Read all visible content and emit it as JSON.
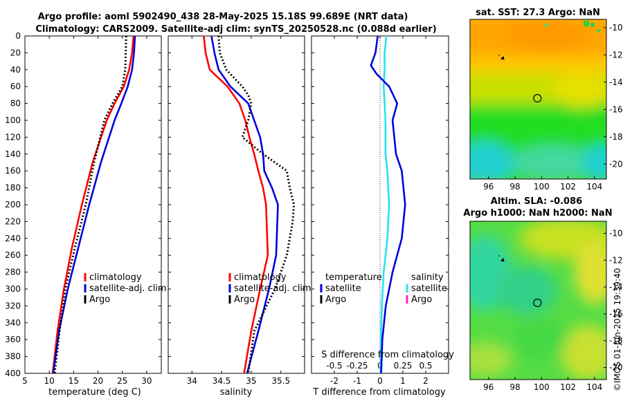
{
  "header": {
    "line1": "Argo profile: aoml 5902490_438 28-May-2025 15.18S 99.689E (NRT data)",
    "line2": "Climatology: CARS2009. Satellite-adj clim: synTS_20250528.nc (0.088d earlier)"
  },
  "colors": {
    "climatology": "#ff0000",
    "satellite": "#0000dd",
    "argo": "#000000",
    "sal_sat": "#22e5f0",
    "sal_argo": "#ff22cc"
  },
  "chart_data": [
    {
      "type": "line",
      "title": "",
      "xlabel": "temperature (deg C)",
      "ylabel": "",
      "xlim": [
        5,
        33
      ],
      "ylim": [
        400,
        0
      ],
      "xticks": [
        "5",
        "10",
        "15",
        "20",
        "25",
        "30"
      ],
      "yticks": [
        "0",
        "20",
        "40",
        "60",
        "80",
        "100",
        "120",
        "140",
        "160",
        "180",
        "200",
        "220",
        "240",
        "260",
        "280",
        "300",
        "320",
        "340",
        "360",
        "380",
        "400"
      ],
      "series": [
        {
          "name": "climatology",
          "style": "solid",
          "depth": [
            0,
            20,
            40,
            60,
            80,
            100,
            150,
            200,
            250,
            300,
            350,
            400
          ],
          "values": [
            27.3,
            27.0,
            26.4,
            25.3,
            23.4,
            21.8,
            18.9,
            16.7,
            14.7,
            13.0,
            11.7,
            10.7
          ]
        },
        {
          "name": "satellite-adj. clim",
          "style": "solid",
          "depth": [
            0,
            20,
            40,
            60,
            80,
            100,
            150,
            200,
            250,
            300,
            350,
            400
          ],
          "values": [
            27.6,
            27.4,
            27.0,
            26.1,
            24.8,
            23.4,
            20.6,
            18.2,
            16.0,
            13.8,
            12.0,
            10.8
          ]
        },
        {
          "name": "Argo",
          "style": "dotted",
          "depth": [
            0,
            20,
            40,
            60,
            80,
            100,
            150,
            200,
            250,
            300,
            350,
            400
          ],
          "values": [
            25.8,
            25.7,
            25.6,
            25.0,
            23.0,
            21.3,
            19.2,
            17.5,
            15.3,
            13.3,
            12.1,
            11.1
          ]
        }
      ],
      "legend": [
        "climatology",
        "satellite-adj. clim",
        "Argo"
      ]
    },
    {
      "type": "line",
      "xlabel": "salinity",
      "xlim": [
        33.6,
        35.9
      ],
      "ylim": [
        400,
        0
      ],
      "xticks": [
        "34",
        "34.5",
        "35",
        "35.5"
      ],
      "series": [
        {
          "name": "climatology",
          "style": "solid",
          "depth": [
            0,
            20,
            40,
            60,
            80,
            100,
            120,
            140,
            160,
            180,
            200,
            260,
            300,
            350,
            400
          ],
          "values": [
            34.2,
            34.23,
            34.3,
            34.6,
            34.8,
            34.9,
            34.97,
            35.05,
            35.12,
            35.2,
            35.25,
            35.28,
            35.15,
            35.0,
            34.88
          ]
        },
        {
          "name": "satellite-adj. clim",
          "style": "solid",
          "depth": [
            0,
            20,
            40,
            60,
            80,
            100,
            120,
            140,
            160,
            180,
            200,
            260,
            300,
            350,
            400
          ],
          "values": [
            34.33,
            34.38,
            34.45,
            34.65,
            34.95,
            35.05,
            35.15,
            35.2,
            35.22,
            35.35,
            35.45,
            35.42,
            35.3,
            35.12,
            34.93
          ]
        },
        {
          "name": "Argo",
          "style": "dotted",
          "depth": [
            0,
            20,
            40,
            60,
            70,
            80,
            100,
            120,
            140,
            160,
            180,
            200,
            220,
            260,
            300,
            350,
            400
          ],
          "values": [
            34.45,
            34.47,
            34.58,
            34.85,
            34.95,
            35.0,
            34.95,
            34.85,
            35.2,
            35.6,
            35.65,
            35.72,
            35.7,
            35.6,
            35.4,
            35.05,
            34.95
          ]
        }
      ],
      "legend": [
        "climatology",
        "satellite-adj. clim",
        "Argo"
      ]
    },
    {
      "type": "line",
      "xlabel": "T difference from climatology",
      "xlabel_top": "S difference from climatology",
      "xlim": [
        -3,
        3
      ],
      "ylim": [
        400,
        0
      ],
      "xticks": [
        "-2",
        "-1",
        "0",
        "1",
        "2"
      ],
      "xticks_top": [
        "-0.5",
        "-0.25",
        "0",
        "0.25",
        "0.5"
      ],
      "series": [
        {
          "name": "temperature satellite",
          "style": "solid",
          "depth": [
            0,
            20,
            35,
            45,
            60,
            80,
            100,
            140,
            160,
            200,
            240,
            280,
            320,
            360,
            400
          ],
          "values": [
            -0.1,
            -0.2,
            -0.4,
            -0.15,
            0.4,
            0.75,
            0.55,
            0.7,
            0.95,
            1.1,
            0.95,
            0.55,
            0.25,
            0.1,
            0.05
          ]
        },
        {
          "name": "salinity satellite",
          "depth": [
            0,
            20,
            40,
            60,
            80,
            100,
            140,
            160,
            200,
            240,
            280,
            320,
            360,
            400
          ],
          "values": [
            0.07,
            0.05,
            0.05,
            0.04,
            0.05,
            0.06,
            0.06,
            0.08,
            0.1,
            0.08,
            0.04,
            0.02,
            0.01,
            0.005
          ]
        }
      ],
      "legend_temperature": [
        "temperature",
        "satellite",
        "Argo"
      ],
      "legend_salinity": [
        "salinity",
        "satellite",
        "Argo"
      ]
    }
  ],
  "maps": {
    "sst_title": "sat. SST: 27.3 Argo: NaN",
    "sla_title1": "Altim. SLA: -0.086",
    "sla_title2": "Argo h1000: NaN h2000: NaN",
    "xticks": [
      "96",
      "98",
      "100",
      "102",
      "104"
    ],
    "yticks": [
      "-10",
      "-12",
      "-14",
      "-16",
      "-18",
      "-20"
    ],
    "profile_marker": {
      "lon": 99.689,
      "lat": -15.18
    }
  },
  "stamp": "©IMOS 01-Jun-2025 19:39:40"
}
